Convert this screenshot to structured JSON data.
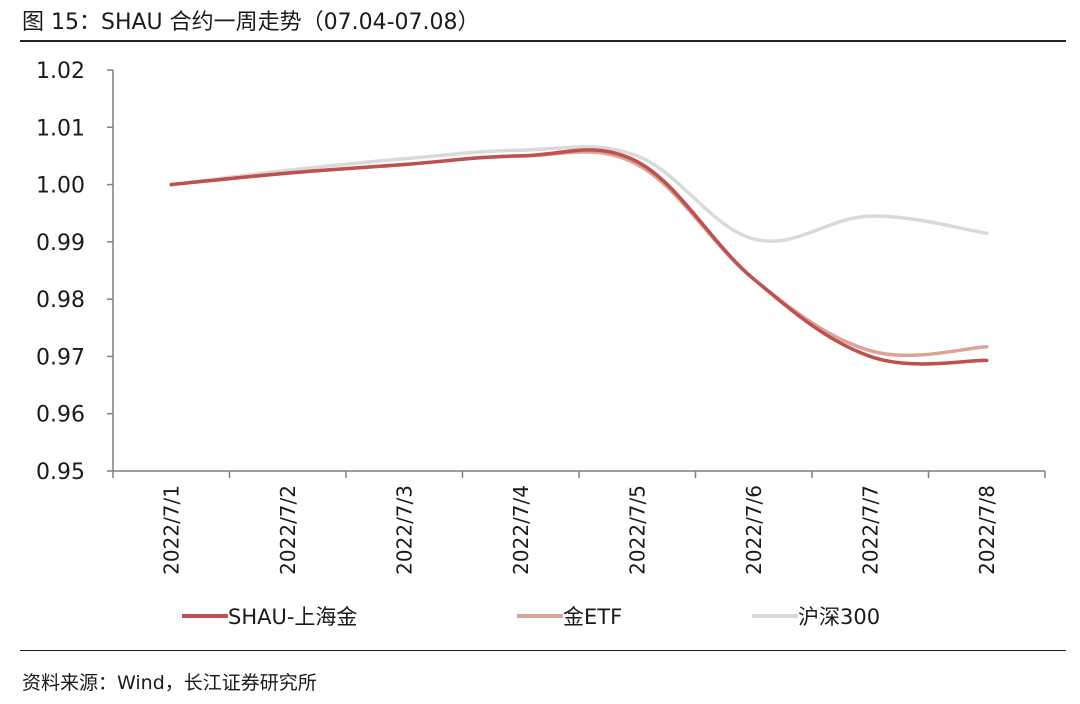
{
  "header": {
    "title": "图 15：SHAU 合约一周走势（07.04-07.08）"
  },
  "footer": {
    "source": "资料来源：Wind，长江证券研究所"
  },
  "chart_data": {
    "type": "line",
    "title": "",
    "xlabel": "",
    "ylabel": "",
    "x": [
      "2022/7/1",
      "2022/7/2",
      "2022/7/3",
      "2022/7/4",
      "2022/7/5",
      "2022/7/6",
      "2022/7/7",
      "2022/7/8"
    ],
    "ylim": [
      0.95,
      1.02
    ],
    "yticks": [
      "1.02",
      "1.01",
      "1.00",
      "0.99",
      "0.98",
      "0.97",
      "0.96",
      "0.95"
    ],
    "grid": false,
    "legend_position": "bottom",
    "series": [
      {
        "name": "SHAU-上海金",
        "color": "#c0504d",
        "values": [
          1.0,
          1.002,
          1.0035,
          1.005,
          1.004,
          0.9835,
          0.97,
          0.9693
        ]
      },
      {
        "name": "金ETF",
        "color": "#dca496",
        "values": [
          1.0,
          1.002,
          1.0035,
          1.005,
          1.0035,
          0.9835,
          0.971,
          0.9717
        ]
      },
      {
        "name": "沪深300",
        "color": "#d9d9d9",
        "values": [
          1.0,
          1.0025,
          1.0045,
          1.006,
          1.005,
          0.9905,
          0.9945,
          0.9915
        ]
      }
    ]
  }
}
